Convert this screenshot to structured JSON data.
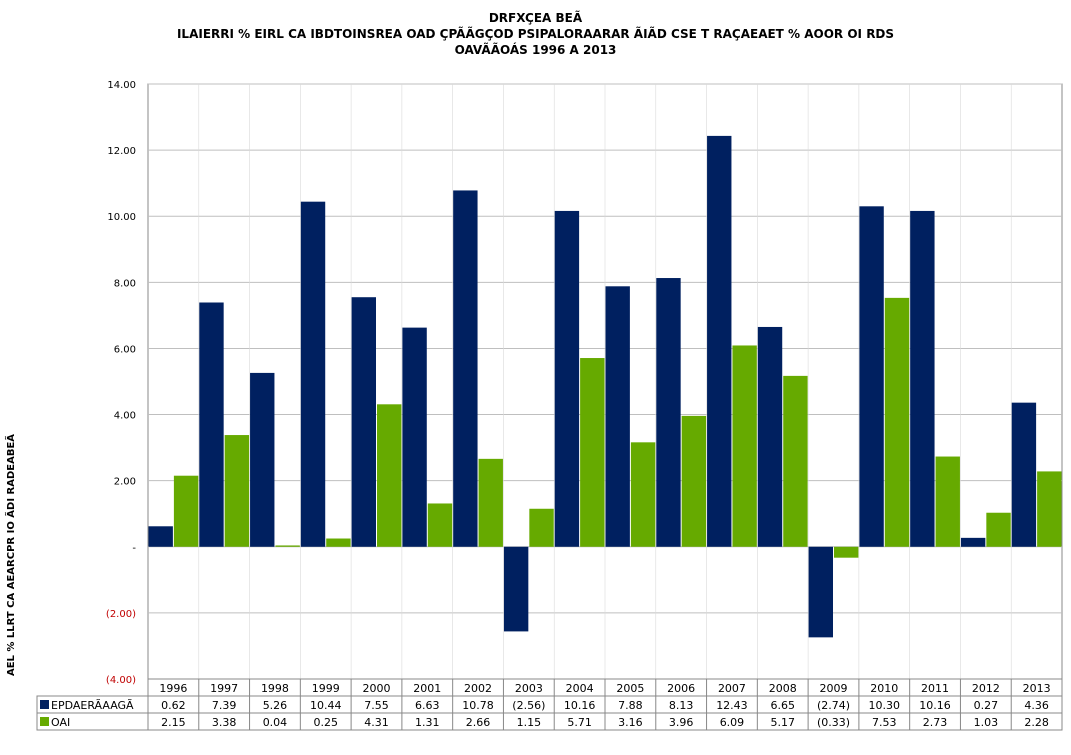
{
  "chart_data": {
    "type": "bar",
    "title": "DRFXÇEA BEÃ",
    "subtitle": "ILAIERRI % EIRL CA IBDTOINSREA OAD ÇPÃÃGÇOD PSIPALORAARAR ÃIÃD CSE T RAÇAEAET % AOOR OI RDS",
    "subtitle2": "OAVÃÃOÁS 1996 A 2013",
    "ylabel": "AEL % LLRT CA AEARCPR IO ÃDI RADEABEÃ",
    "xlabel": "",
    "ylim": [
      -4,
      14
    ],
    "yticks": [
      -4,
      -2,
      0,
      2,
      4,
      6,
      8,
      10,
      12,
      14
    ],
    "ytick_labels": [
      "(4.00)",
      "(2.00)",
      "-",
      "2.00",
      "4.00",
      "6.00",
      "8.00",
      "10.00",
      "12.00",
      "14.00"
    ],
    "negative_tick_color": "#c00000",
    "grid": true,
    "categories": [
      "1996",
      "1997",
      "1998",
      "1999",
      "2000",
      "2001",
      "2002",
      "2003",
      "2004",
      "2005",
      "2006",
      "2007",
      "2008",
      "2009",
      "2010",
      "2011",
      "2012",
      "2013"
    ],
    "series": [
      {
        "name": "EPDAERÃAAGÃ",
        "color": "#002060",
        "values": [
          0.62,
          7.39,
          5.26,
          10.44,
          7.55,
          6.63,
          10.78,
          -2.56,
          10.16,
          7.88,
          8.13,
          12.43,
          6.65,
          -2.74,
          10.3,
          10.16,
          0.27,
          4.36
        ],
        "labels": [
          "0.62",
          "7.39",
          "5.26",
          "10.44",
          "7.55",
          "6.63",
          "10.78",
          "(2.56)",
          "10.16",
          "7.88",
          "8.13",
          "12.43",
          "6.65",
          "(2.74)",
          "10.30",
          "10.16",
          "0.27",
          "4.36"
        ]
      },
      {
        "name": "OAI",
        "color": "#66aa00",
        "values": [
          2.15,
          3.38,
          0.04,
          0.25,
          4.31,
          1.31,
          2.66,
          1.15,
          5.71,
          3.16,
          3.96,
          6.09,
          5.17,
          -0.33,
          7.53,
          2.73,
          1.03,
          2.28
        ],
        "labels": [
          "2.15",
          "3.38",
          "0.04",
          "0.25",
          "4.31",
          "1.31",
          "2.66",
          "1.15",
          "5.71",
          "3.16",
          "3.96",
          "6.09",
          "5.17",
          "(0.33)",
          "7.53",
          "2.73",
          "1.03",
          "2.28"
        ]
      }
    ],
    "legend": "data-table-below"
  }
}
